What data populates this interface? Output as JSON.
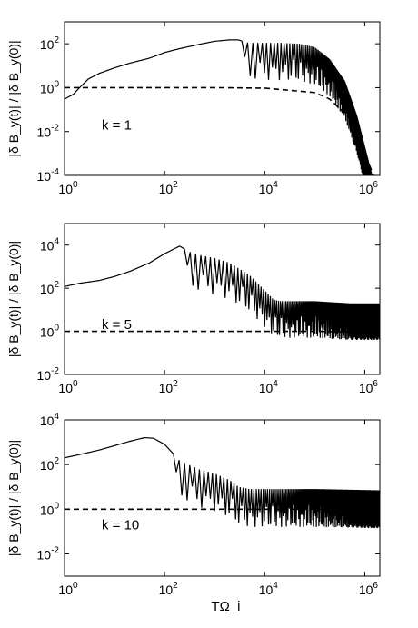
{
  "chart_data": [
    {
      "type": "line",
      "panel_label": "k = 1",
      "ylabel": "|δ B_y(t)| / |δ B_y(0)|",
      "xlabel": "",
      "x_scale": "log",
      "y_scale": "log",
      "xlim": [
        1,
        2000000
      ],
      "ylim": [
        0.0001,
        1000
      ],
      "x_ticks": [
        {
          "base": "10",
          "exp": "0",
          "value": 1
        },
        {
          "base": "10",
          "exp": "2",
          "value": 100
        },
        {
          "base": "10",
          "exp": "4",
          "value": 10000
        },
        {
          "base": "10",
          "exp": "6",
          "value": 1000000
        }
      ],
      "y_ticks": [
        {
          "base": "10",
          "exp": "2",
          "value": 100
        },
        {
          "base": "10",
          "exp": "0",
          "value": 1
        },
        {
          "base": "10",
          "exp": "-2",
          "value": 0.01
        },
        {
          "base": "10",
          "exp": "-4",
          "value": 0.0001
        }
      ],
      "series": [
        {
          "style": "solid",
          "x": [
            1,
            1.5,
            2,
            3,
            5,
            10,
            20,
            50,
            100,
            200,
            500,
            1000,
            2000,
            3000,
            4000,
            5000,
            7000,
            10000,
            20000,
            50000,
            100000,
            200000,
            400000,
            700000,
            1000000,
            1400000
          ],
          "y": [
            0.3,
            0.5,
            1.0,
            2.5,
            4.5,
            8,
            13,
            22,
            40,
            60,
            95,
            130,
            150,
            150,
            120,
            110,
            110,
            110,
            110,
            100,
            70,
            20,
            2,
            0.05,
            0.002,
            0.0001
          ],
          "oscillation": {
            "start": 3500,
            "end": 1400000,
            "min_ratio": 0.02
          }
        },
        {
          "style": "dashed",
          "x": [
            1,
            10,
            100,
            1000,
            10000,
            100000,
            200000,
            500000,
            1000000,
            1500000
          ],
          "y": [
            1,
            1,
            1,
            1,
            0.95,
            0.6,
            0.3,
            0.04,
            0.001,
            0.0001
          ]
        }
      ]
    },
    {
      "type": "line",
      "panel_label": "k = 5",
      "ylabel": "|δ B_y(t)| / |δ B_y(0)|",
      "xlabel": "",
      "x_scale": "log",
      "y_scale": "log",
      "xlim": [
        1,
        2000000
      ],
      "ylim": [
        0.01,
        100000
      ],
      "x_ticks": [
        {
          "base": "10",
          "exp": "0",
          "value": 1
        },
        {
          "base": "10",
          "exp": "2",
          "value": 100
        },
        {
          "base": "10",
          "exp": "4",
          "value": 10000
        },
        {
          "base": "10",
          "exp": "6",
          "value": 1000000
        }
      ],
      "y_ticks": [
        {
          "base": "10",
          "exp": "4",
          "value": 10000
        },
        {
          "base": "10",
          "exp": "2",
          "value": 100
        },
        {
          "base": "10",
          "exp": "0",
          "value": 1
        },
        {
          "base": "10",
          "exp": "-2",
          "value": 0.01
        }
      ],
      "series": [
        {
          "style": "solid",
          "x": [
            1,
            2,
            5,
            10,
            20,
            50,
            100,
            200,
            300,
            500,
            1000,
            2000,
            5000,
            10000,
            15000,
            20000,
            100000,
            500000,
            2000000
          ],
          "y": [
            120,
            170,
            230,
            350,
            600,
            1500,
            4000,
            9000,
            5000,
            3500,
            2500,
            1500,
            400,
            80,
            30,
            25,
            25,
            20,
            20
          ],
          "oscillation": {
            "start": 250,
            "end": 2000000,
            "min_ratio": 0.02
          }
        },
        {
          "style": "dashed",
          "x": [
            1,
            10,
            1000,
            100000,
            1000000,
            2000000
          ],
          "y": [
            1,
            1,
            1,
            1,
            0.9,
            0.9
          ]
        }
      ]
    },
    {
      "type": "line",
      "panel_label": "k = 10",
      "ylabel": "|δ B_y(t)| / |δ B_y(0)|",
      "xlabel": "TΩ_i",
      "x_scale": "log",
      "y_scale": "log",
      "xlim": [
        1,
        2000000
      ],
      "ylim": [
        0.001,
        10000
      ],
      "x_ticks": [
        {
          "base": "10",
          "exp": "0",
          "value": 1
        },
        {
          "base": "10",
          "exp": "2",
          "value": 100
        },
        {
          "base": "10",
          "exp": "4",
          "value": 10000
        },
        {
          "base": "10",
          "exp": "6",
          "value": 1000000
        }
      ],
      "y_ticks": [
        {
          "base": "10",
          "exp": "4",
          "value": 10000
        },
        {
          "base": "10",
          "exp": "2",
          "value": 100
        },
        {
          "base": "10",
          "exp": "0",
          "value": 1
        },
        {
          "base": "10",
          "exp": "-2",
          "value": 0.01
        }
      ],
      "series": [
        {
          "style": "solid",
          "x": [
            1,
            2,
            5,
            10,
            20,
            40,
            60,
            100,
            150,
            200,
            300,
            500,
            1000,
            2000,
            3000,
            5000,
            10000,
            100000,
            2000000
          ],
          "y": [
            200,
            280,
            450,
            700,
            1100,
            1600,
            1500,
            800,
            300,
            150,
            100,
            60,
            40,
            20,
            10,
            8,
            8,
            8,
            7
          ],
          "oscillation": {
            "start": 150,
            "end": 2000000,
            "min_ratio": 0.02
          }
        },
        {
          "style": "dashed",
          "x": [
            1,
            10,
            1000,
            100000,
            2000000
          ],
          "y": [
            1,
            1,
            1,
            1,
            1
          ]
        }
      ]
    }
  ]
}
